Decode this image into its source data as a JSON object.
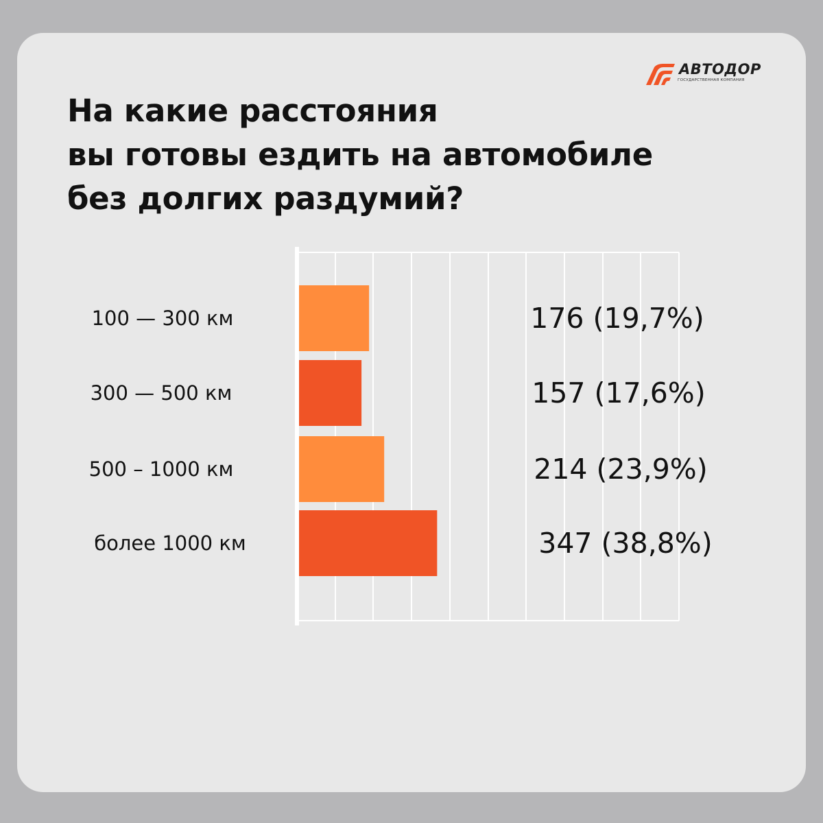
{
  "title_lines": [
    "На какие расстояния",
    "вы готовы ездить на автомобиле",
    "без долгих раздумий?"
  ],
  "logo": {
    "name": "АВТОДОР",
    "subtitle": "Государственная компания"
  },
  "colors": {
    "background": "#b6b6b8",
    "card": "#e8e8e8",
    "bar_light": "#ff8c3c",
    "bar_dark": "#f05426",
    "grid": "#ffffff",
    "text": "#111111"
  },
  "chart_data": {
    "type": "bar",
    "orientation": "horizontal",
    "categories": [
      "100 — 300 км",
      "300 — 500 км",
      "500 – 1000 км",
      "более 1000 км"
    ],
    "values": [
      176,
      157,
      214,
      347
    ],
    "value_labels": [
      "176 (19,7%)",
      "157 (17,6%)",
      "214 (23,9%)",
      "347 (38,8%)"
    ],
    "percentages": [
      19.7,
      17.6,
      23.9,
      38.8
    ],
    "bar_colors": [
      "#ff8c3c",
      "#f05426",
      "#ff8c3c",
      "#f05426"
    ],
    "xlim": [
      0,
      960
    ],
    "grid": true,
    "title": "",
    "xlabel": "",
    "ylabel": ""
  }
}
